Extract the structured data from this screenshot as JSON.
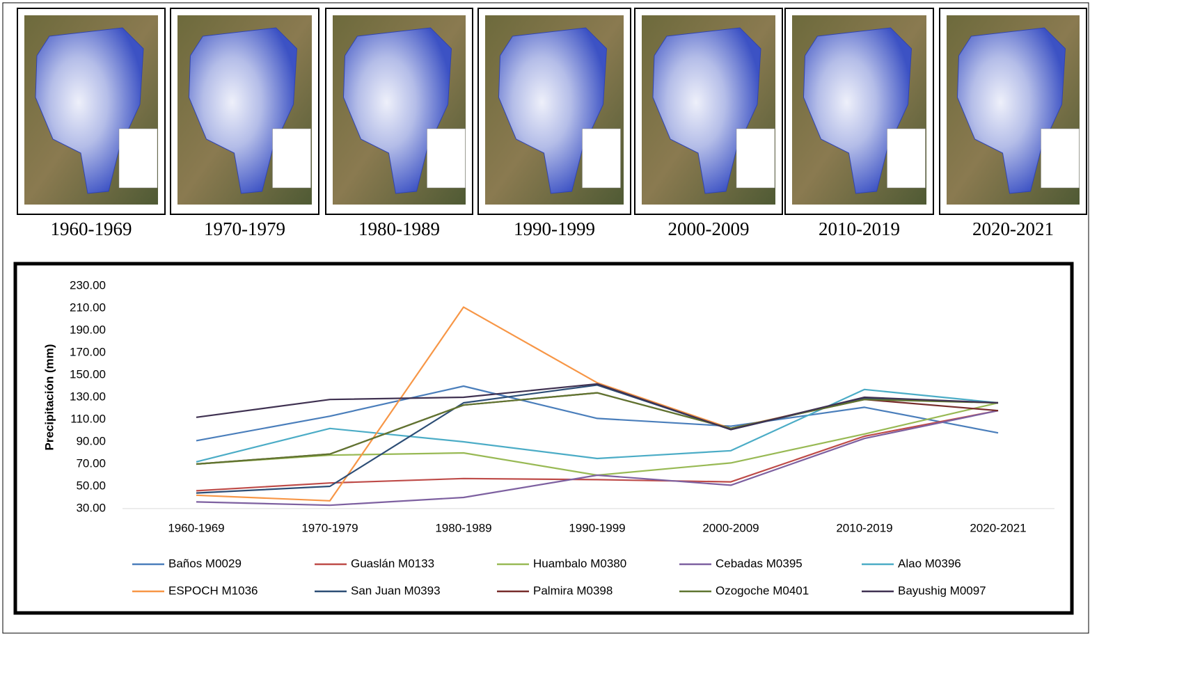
{
  "panels": [
    "1960-1969",
    "1970-1979",
    "1980-1989",
    "1990-1999",
    "2000-2009",
    "2010-2019",
    "2020-2021"
  ],
  "chart_data": {
    "type": "line",
    "y_label": "Precipitación (mm)",
    "categories": [
      "1960-1969",
      "1970-1979",
      "1980-1989",
      "1990-1999",
      "2000-2009",
      "2010-2019",
      "2020-2021"
    ],
    "ylim": [
      30,
      230
    ],
    "yticks": [
      {
        "value": 30,
        "label": "30.00"
      },
      {
        "value": 50,
        "label": "50.00"
      },
      {
        "value": 70,
        "label": "70.00"
      },
      {
        "value": 90,
        "label": "90.00"
      },
      {
        "value": 110,
        "label": "110.00"
      },
      {
        "value": 130,
        "label": "130.00"
      },
      {
        "value": 150,
        "label": "150.00"
      },
      {
        "value": 170,
        "label": "170.00"
      },
      {
        "value": 190,
        "label": "190.00"
      },
      {
        "value": 210,
        "label": "210.00"
      },
      {
        "value": 230,
        "label": "230.00"
      }
    ],
    "grid": false,
    "series": [
      {
        "name": "Baños M0029",
        "color": "#4a7ebb",
        "values": [
          91,
          113,
          140,
          111,
          104,
          121,
          98
        ]
      },
      {
        "name": "Guaslán M0133",
        "color": "#be4b48",
        "values": [
          46,
          53,
          57,
          56,
          54,
          95,
          118
        ]
      },
      {
        "name": "Huambalo M0380",
        "color": "#98b954",
        "values": [
          70,
          78,
          80,
          60,
          71,
          97,
          125
        ]
      },
      {
        "name": "Cebadas M0395",
        "color": "#7d60a0",
        "values": [
          36,
          33,
          40,
          60,
          51,
          93,
          118
        ]
      },
      {
        "name": "Alao M0396",
        "color": "#4bacc6",
        "values": [
          72,
          102,
          90,
          75,
          82,
          137,
          125
        ]
      },
      {
        "name": "ESPOCH M1036",
        "color": "#f79646",
        "values": [
          42,
          37,
          211,
          143,
          102,
          129,
          125
        ]
      },
      {
        "name": "San Juan M0393",
        "color": "#2c4d75",
        "values": [
          44,
          50,
          125,
          141,
          101,
          129,
          125
        ]
      },
      {
        "name": "Palmira M0398",
        "color": "#772c2a",
        "values": [
          70,
          79,
          123,
          134,
          102,
          128,
          118
        ]
      },
      {
        "name": "Ozogoche  M0401",
        "color": "#5f7530",
        "values": [
          70,
          79,
          123,
          134,
          102,
          128,
          125
        ]
      },
      {
        "name": "Bayushig M0097",
        "color": "#3f3151",
        "values": [
          112,
          128,
          130,
          142,
          101,
          130,
          125
        ]
      }
    ]
  }
}
